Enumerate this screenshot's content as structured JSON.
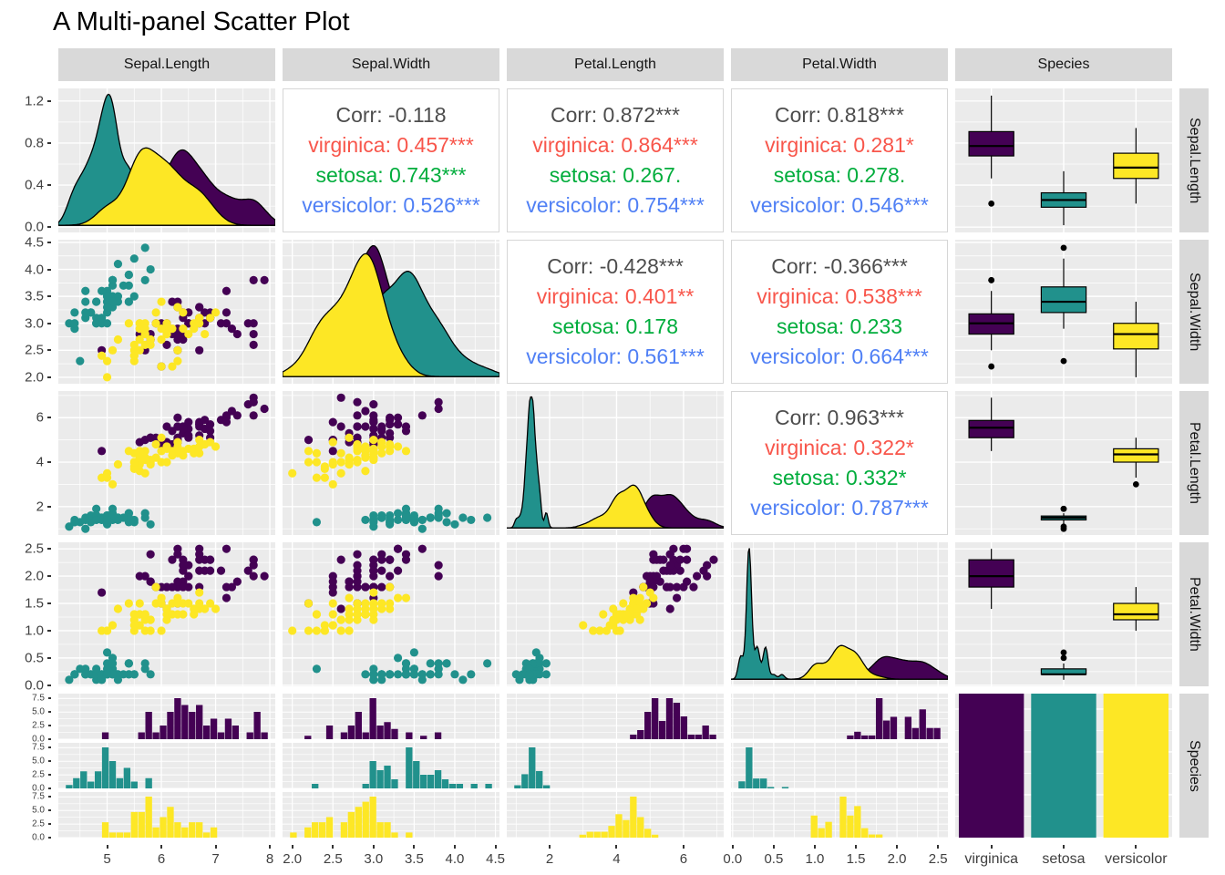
{
  "colors": {
    "virginica": "#440154",
    "setosa": "#21918C",
    "versicolor": "#FDE725",
    "panel_bg": "#EBEBEB",
    "strip_bg": "#D9D9D9",
    "grid_line": "#FFFFFF",
    "outline": "#000000",
    "axis_text": "#404040",
    "cor_text": {
      "corr": "#4D4D4D",
      "virginica": "#F8564B",
      "setosa": "#00AD3C",
      "versicolor": "#5080F5"
    }
  },
  "chart_data": {
    "type": "scatter-matrix",
    "title": "A Multi-panel Scatter Plot",
    "variables": [
      "Sepal.Length",
      "Sepal.Width",
      "Petal.Length",
      "Petal.Width",
      "Species"
    ],
    "groups": [
      "virginica",
      "setosa",
      "versicolor"
    ],
    "matrix": [
      [
        "density",
        "cor",
        "cor",
        "cor",
        "box"
      ],
      [
        "scatter",
        "density",
        "cor",
        "cor",
        "box"
      ],
      [
        "scatter",
        "scatter",
        "density",
        "cor",
        "box"
      ],
      [
        "scatter",
        "scatter",
        "scatter",
        "density",
        "box"
      ],
      [
        "hist",
        "hist",
        "hist",
        "hist",
        "bars"
      ]
    ],
    "axes": {
      "cols": [
        {
          "var": "Sepal.Length",
          "domain": [
            4.1,
            8.1
          ],
          "ticks": [
            5,
            6,
            7,
            8
          ],
          "tick_labels": [
            "5",
            "6",
            "7",
            "8"
          ]
        },
        {
          "var": "Sepal.Width",
          "domain": [
            1.88,
            4.55
          ],
          "ticks": [
            2.0,
            2.5,
            3.0,
            3.5,
            4.0,
            4.5
          ],
          "tick_labels": [
            "2.0",
            "2.5",
            "3.0",
            "3.5",
            "4.0",
            "4.5"
          ]
        },
        {
          "var": "Petal.Length",
          "domain": [
            0.72,
            7.2
          ],
          "ticks": [
            2,
            4,
            6
          ],
          "tick_labels": [
            "2",
            "4",
            "6"
          ]
        },
        {
          "var": "Petal.Width",
          "domain": [
            -0.02,
            2.62
          ],
          "ticks": [
            0.0,
            0.5,
            1.0,
            1.5,
            2.0,
            2.5
          ],
          "tick_labels": [
            "0.0",
            "0.5",
            "1.0",
            "1.5",
            "2.0",
            "2.5"
          ]
        },
        {
          "var": "Species",
          "categories": [
            "virginica",
            "setosa",
            "versicolor"
          ],
          "tick_labels": [
            "virginica",
            "setosa",
            "versicolor"
          ]
        }
      ],
      "rows": [
        {
          "var": "Sepal.Length",
          "type": "density",
          "domain": [
            -0.05,
            1.32
          ],
          "ticks": [
            0.0,
            0.4,
            0.8,
            1.2
          ],
          "tick_labels": [
            "0.0",
            "0.4",
            "0.8",
            "1.2"
          ]
        },
        {
          "var": "Sepal.Width",
          "domain": [
            1.88,
            4.55
          ],
          "ticks": [
            2.0,
            2.5,
            3.0,
            3.5,
            4.0,
            4.5
          ],
          "tick_labels": [
            "2.0",
            "2.5",
            "3.0",
            "3.5",
            "4.0",
            "4.5"
          ]
        },
        {
          "var": "Petal.Length",
          "domain": [
            0.72,
            7.2
          ],
          "ticks": [
            2,
            4,
            6
          ],
          "tick_labels": [
            "2",
            "4",
            "6"
          ]
        },
        {
          "var": "Petal.Width",
          "domain": [
            -0.02,
            2.62
          ],
          "ticks": [
            0.0,
            0.5,
            1.0,
            1.5,
            2.0,
            2.5
          ],
          "tick_labels": [
            "0.0",
            "0.5",
            "1.0",
            "1.5",
            "2.0",
            "2.5"
          ]
        },
        {
          "var": "Species",
          "type": "facets",
          "facet_ticks": [
            7.5,
            5.0,
            2.5,
            0.0
          ],
          "facet_tick_labels": [
            "7.5",
            "5.0",
            "2.5",
            "0.0"
          ]
        }
      ]
    },
    "correlations": [
      {
        "row": 0,
        "col": 1,
        "lines": [
          {
            "key": "corr",
            "text": "Corr: -0.118"
          },
          {
            "key": "virginica",
            "text": "virginica: 0.457***"
          },
          {
            "key": "setosa",
            "text": "setosa: 0.743***"
          },
          {
            "key": "versicolor",
            "text": "versicolor: 0.526***"
          }
        ]
      },
      {
        "row": 0,
        "col": 2,
        "lines": [
          {
            "key": "corr",
            "text": "Corr: 0.872***"
          },
          {
            "key": "virginica",
            "text": "virginica: 0.864***"
          },
          {
            "key": "setosa",
            "text": "setosa: 0.267."
          },
          {
            "key": "versicolor",
            "text": "versicolor: 0.754***"
          }
        ]
      },
      {
        "row": 0,
        "col": 3,
        "lines": [
          {
            "key": "corr",
            "text": "Corr: 0.818***"
          },
          {
            "key": "virginica",
            "text": "virginica: 0.281*"
          },
          {
            "key": "setosa",
            "text": "setosa: 0.278."
          },
          {
            "key": "versicolor",
            "text": "versicolor: 0.546***"
          }
        ]
      },
      {
        "row": 1,
        "col": 2,
        "lines": [
          {
            "key": "corr",
            "text": "Corr: -0.428***"
          },
          {
            "key": "virginica",
            "text": "virginica: 0.401**"
          },
          {
            "key": "setosa",
            "text": "setosa: 0.178"
          },
          {
            "key": "versicolor",
            "text": "versicolor: 0.561***"
          }
        ]
      },
      {
        "row": 1,
        "col": 3,
        "lines": [
          {
            "key": "corr",
            "text": "Corr: -0.366***"
          },
          {
            "key": "virginica",
            "text": "virginica: 0.538***"
          },
          {
            "key": "setosa",
            "text": "setosa: 0.233"
          },
          {
            "key": "versicolor",
            "text": "versicolor: 0.664***"
          }
        ]
      },
      {
        "row": 2,
        "col": 3,
        "lines": [
          {
            "key": "corr",
            "text": "Corr: 0.963***"
          },
          {
            "key": "virginica",
            "text": "virginica: 0.322*"
          },
          {
            "key": "setosa",
            "text": "setosa: 0.332*"
          },
          {
            "key": "versicolor",
            "text": "versicolor: 0.787***"
          }
        ]
      }
    ],
    "points": {
      "columns": [
        "Sepal.Length",
        "Sepal.Width",
        "Petal.Length",
        "Petal.Width"
      ],
      "setosa": [
        [
          5.1,
          3.5,
          1.4,
          0.2
        ],
        [
          4.9,
          3.0,
          1.4,
          0.2
        ],
        [
          4.7,
          3.2,
          1.3,
          0.2
        ],
        [
          4.6,
          3.1,
          1.5,
          0.2
        ],
        [
          5.0,
          3.6,
          1.4,
          0.2
        ],
        [
          5.4,
          3.9,
          1.7,
          0.4
        ],
        [
          4.6,
          3.4,
          1.4,
          0.3
        ],
        [
          5.0,
          3.4,
          1.5,
          0.2
        ],
        [
          4.4,
          2.9,
          1.4,
          0.2
        ],
        [
          4.9,
          3.1,
          1.5,
          0.1
        ],
        [
          5.4,
          3.7,
          1.5,
          0.2
        ],
        [
          4.8,
          3.4,
          1.6,
          0.2
        ],
        [
          4.8,
          3.0,
          1.4,
          0.1
        ],
        [
          4.3,
          3.0,
          1.1,
          0.1
        ],
        [
          5.8,
          4.0,
          1.2,
          0.2
        ],
        [
          5.7,
          4.4,
          1.5,
          0.4
        ],
        [
          5.4,
          3.9,
          1.3,
          0.4
        ],
        [
          5.1,
          3.5,
          1.4,
          0.3
        ],
        [
          5.7,
          3.8,
          1.7,
          0.3
        ],
        [
          5.1,
          3.8,
          1.5,
          0.3
        ],
        [
          5.4,
          3.4,
          1.7,
          0.2
        ],
        [
          5.1,
          3.7,
          1.5,
          0.4
        ],
        [
          4.6,
          3.6,
          1.0,
          0.2
        ],
        [
          5.1,
          3.3,
          1.7,
          0.5
        ],
        [
          4.8,
          3.4,
          1.9,
          0.2
        ],
        [
          5.0,
          3.0,
          1.6,
          0.2
        ],
        [
          5.0,
          3.4,
          1.6,
          0.4
        ],
        [
          5.2,
          3.5,
          1.5,
          0.2
        ],
        [
          5.2,
          3.4,
          1.4,
          0.2
        ],
        [
          4.7,
          3.2,
          1.6,
          0.2
        ],
        [
          4.8,
          3.1,
          1.6,
          0.2
        ],
        [
          5.4,
          3.4,
          1.5,
          0.4
        ],
        [
          5.2,
          4.1,
          1.5,
          0.1
        ],
        [
          5.5,
          4.2,
          1.4,
          0.2
        ],
        [
          4.9,
          3.1,
          1.5,
          0.2
        ],
        [
          5.0,
          3.2,
          1.2,
          0.2
        ],
        [
          5.5,
          3.5,
          1.3,
          0.2
        ],
        [
          4.9,
          3.6,
          1.4,
          0.1
        ],
        [
          4.4,
          3.0,
          1.3,
          0.2
        ],
        [
          5.1,
          3.4,
          1.5,
          0.2
        ],
        [
          5.0,
          3.5,
          1.3,
          0.3
        ],
        [
          4.5,
          2.3,
          1.3,
          0.3
        ],
        [
          4.4,
          3.2,
          1.3,
          0.2
        ],
        [
          5.0,
          3.5,
          1.6,
          0.6
        ],
        [
          5.1,
          3.8,
          1.9,
          0.4
        ],
        [
          4.8,
          3.0,
          1.4,
          0.3
        ],
        [
          5.1,
          3.8,
          1.6,
          0.2
        ],
        [
          4.6,
          3.2,
          1.4,
          0.2
        ],
        [
          5.3,
          3.7,
          1.5,
          0.2
        ],
        [
          5.0,
          3.3,
          1.4,
          0.2
        ]
      ],
      "versicolor": [
        [
          7.0,
          3.2,
          4.7,
          1.4
        ],
        [
          6.4,
          3.2,
          4.5,
          1.5
        ],
        [
          6.9,
          3.1,
          4.9,
          1.5
        ],
        [
          5.5,
          2.3,
          4.0,
          1.3
        ],
        [
          6.5,
          2.8,
          4.6,
          1.5
        ],
        [
          5.7,
          2.8,
          4.5,
          1.3
        ],
        [
          6.3,
          3.3,
          4.7,
          1.6
        ],
        [
          4.9,
          2.4,
          3.3,
          1.0
        ],
        [
          6.6,
          2.9,
          4.6,
          1.3
        ],
        [
          5.2,
          2.7,
          3.9,
          1.4
        ],
        [
          5.0,
          2.0,
          3.5,
          1.0
        ],
        [
          5.9,
          3.0,
          4.2,
          1.5
        ],
        [
          6.0,
          2.2,
          4.0,
          1.0
        ],
        [
          6.1,
          2.9,
          4.7,
          1.4
        ],
        [
          5.6,
          2.9,
          3.6,
          1.3
        ],
        [
          6.7,
          3.1,
          4.4,
          1.4
        ],
        [
          5.6,
          3.0,
          4.5,
          1.5
        ],
        [
          5.8,
          2.7,
          4.1,
          1.0
        ],
        [
          6.2,
          2.2,
          4.5,
          1.5
        ],
        [
          5.6,
          2.5,
          3.9,
          1.1
        ],
        [
          5.9,
          3.2,
          4.8,
          1.8
        ],
        [
          6.1,
          2.8,
          4.0,
          1.3
        ],
        [
          6.3,
          2.5,
          4.9,
          1.5
        ],
        [
          6.1,
          2.8,
          4.7,
          1.2
        ],
        [
          6.4,
          2.9,
          4.3,
          1.3
        ],
        [
          6.6,
          3.0,
          4.4,
          1.4
        ],
        [
          6.8,
          2.8,
          4.8,
          1.4
        ],
        [
          6.7,
          3.0,
          5.0,
          1.7
        ],
        [
          6.0,
          2.9,
          4.5,
          1.5
        ],
        [
          5.7,
          2.6,
          3.5,
          1.0
        ],
        [
          5.5,
          2.4,
          3.8,
          1.1
        ],
        [
          5.5,
          2.4,
          3.7,
          1.0
        ],
        [
          5.8,
          2.7,
          3.9,
          1.2
        ],
        [
          6.0,
          2.7,
          5.1,
          1.6
        ],
        [
          5.4,
          3.0,
          4.5,
          1.5
        ],
        [
          6.0,
          3.4,
          4.5,
          1.6
        ],
        [
          6.7,
          3.1,
          4.7,
          1.5
        ],
        [
          6.3,
          2.3,
          4.4,
          1.3
        ],
        [
          5.6,
          3.0,
          4.1,
          1.3
        ],
        [
          5.5,
          2.5,
          4.0,
          1.3
        ],
        [
          5.5,
          2.6,
          4.4,
          1.2
        ],
        [
          6.1,
          3.0,
          4.6,
          1.4
        ],
        [
          5.8,
          2.6,
          4.0,
          1.2
        ],
        [
          5.0,
          2.3,
          3.3,
          1.0
        ],
        [
          5.6,
          2.7,
          4.2,
          1.3
        ],
        [
          5.7,
          3.0,
          4.2,
          1.2
        ],
        [
          5.7,
          2.9,
          4.2,
          1.3
        ],
        [
          6.2,
          2.9,
          4.3,
          1.3
        ],
        [
          5.1,
          2.5,
          3.0,
          1.1
        ],
        [
          5.7,
          2.8,
          4.1,
          1.3
        ]
      ],
      "virginica": [
        [
          6.3,
          3.3,
          6.0,
          2.5
        ],
        [
          5.8,
          2.7,
          5.1,
          1.9
        ],
        [
          7.1,
          3.0,
          5.9,
          2.1
        ],
        [
          6.3,
          2.9,
          5.6,
          1.8
        ],
        [
          6.5,
          3.0,
          5.8,
          2.2
        ],
        [
          7.6,
          3.0,
          6.6,
          2.1
        ],
        [
          4.9,
          2.5,
          4.5,
          1.7
        ],
        [
          7.3,
          2.9,
          6.3,
          1.8
        ],
        [
          6.7,
          2.5,
          5.8,
          1.8
        ],
        [
          7.2,
          3.6,
          6.1,
          2.5
        ],
        [
          6.5,
          3.2,
          5.1,
          2.0
        ],
        [
          6.4,
          2.7,
          5.3,
          1.9
        ],
        [
          6.8,
          3.0,
          5.5,
          2.1
        ],
        [
          5.7,
          2.5,
          5.0,
          2.0
        ],
        [
          5.8,
          2.8,
          5.1,
          2.4
        ],
        [
          6.4,
          3.2,
          5.3,
          2.3
        ],
        [
          6.5,
          3.0,
          5.5,
          1.8
        ],
        [
          7.7,
          3.8,
          6.7,
          2.2
        ],
        [
          7.7,
          2.6,
          6.9,
          2.3
        ],
        [
          6.0,
          2.2,
          5.0,
          1.5
        ],
        [
          6.9,
          3.2,
          5.7,
          2.3
        ],
        [
          5.6,
          2.8,
          4.9,
          2.0
        ],
        [
          7.7,
          2.8,
          6.7,
          2.0
        ],
        [
          6.3,
          2.7,
          4.9,
          1.8
        ],
        [
          6.7,
          3.3,
          5.7,
          2.1
        ],
        [
          7.2,
          3.2,
          6.0,
          1.8
        ],
        [
          6.2,
          2.8,
          4.8,
          1.8
        ],
        [
          6.1,
          3.0,
          4.9,
          1.8
        ],
        [
          6.4,
          2.8,
          5.6,
          2.1
        ],
        [
          7.2,
          3.0,
          5.8,
          1.6
        ],
        [
          7.4,
          2.8,
          6.1,
          1.9
        ],
        [
          7.9,
          3.8,
          6.4,
          2.0
        ],
        [
          6.4,
          2.8,
          5.6,
          2.2
        ],
        [
          6.3,
          2.8,
          5.1,
          1.5
        ],
        [
          6.1,
          2.6,
          5.6,
          1.4
        ],
        [
          7.7,
          3.0,
          6.1,
          2.3
        ],
        [
          6.3,
          3.4,
          5.6,
          2.4
        ],
        [
          6.4,
          3.1,
          5.5,
          1.8
        ],
        [
          6.0,
          3.0,
          4.8,
          1.8
        ],
        [
          6.9,
          3.1,
          5.4,
          2.1
        ],
        [
          6.7,
          3.1,
          5.6,
          2.4
        ],
        [
          6.9,
          3.1,
          5.1,
          2.3
        ],
        [
          5.8,
          2.7,
          5.1,
          1.9
        ],
        [
          6.8,
          3.2,
          5.9,
          2.3
        ],
        [
          6.7,
          3.3,
          5.7,
          2.5
        ],
        [
          6.7,
          3.0,
          5.2,
          2.3
        ],
        [
          6.3,
          2.5,
          5.0,
          1.9
        ],
        [
          6.5,
          3.0,
          5.2,
          2.0
        ],
        [
          6.2,
          3.4,
          5.4,
          2.3
        ],
        [
          5.9,
          3.0,
          5.1,
          1.8
        ]
      ]
    }
  }
}
